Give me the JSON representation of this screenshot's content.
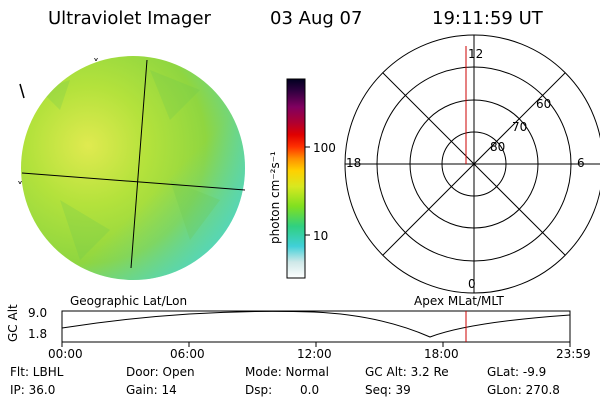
{
  "header": {
    "title": "Ultraviolet Imager",
    "date": "03 Aug 07",
    "time": "19:11:59 UT"
  },
  "colorbar": {
    "unit_label": "photon cm⁻²s⁻¹",
    "ticks": [
      "100",
      "10"
    ]
  },
  "polar_plot": {
    "clock_labels": {
      "top": "12",
      "left": "18",
      "right": "6",
      "bottom": "0"
    },
    "ring_labels": [
      "60",
      "70",
      "80"
    ]
  },
  "timeline": {
    "y_axis_label": "GC Alt",
    "y_max": "9.0",
    "y_min": "1.8",
    "left_title": "Geographic Lat/Lon",
    "right_title": "Apex MLat/MLT",
    "time_ticks": [
      "00:00",
      "06:00",
      "12:00",
      "18:00",
      "23:59"
    ],
    "marker_color": "#cc0000"
  },
  "info": {
    "flt": "Flt: LBHL",
    "ip": "IP: 36.0",
    "door": "Door: Open",
    "gain": "Gain: 14",
    "mode": "Mode: Normal",
    "dsp_label": "Dsp:",
    "dsp_value": "0.0",
    "gcalt": "GC Alt: 3.2 Re",
    "seq": "Seq: 39",
    "glat": "GLat: -9.9",
    "glon": "GLon: 270.8"
  },
  "colors": {
    "disk_green": "#9bd93a",
    "disk_yellow": "#d6e84a",
    "disk_cyan": "#4ed6c8"
  }
}
